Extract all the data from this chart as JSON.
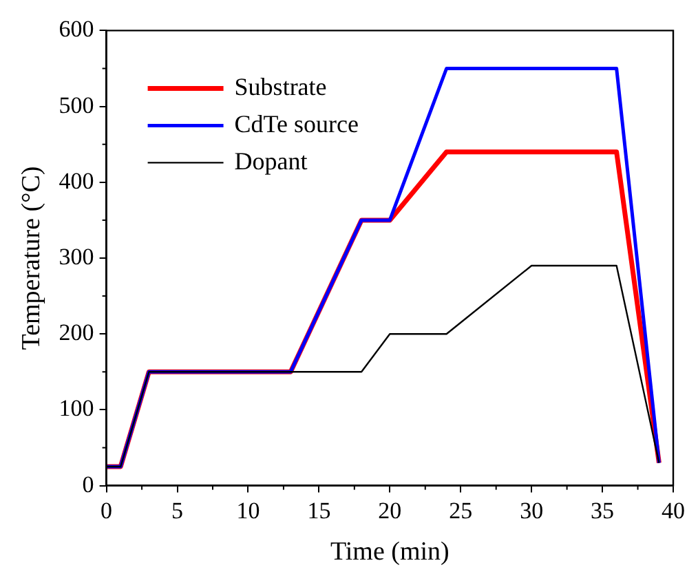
{
  "chart_data": {
    "type": "line",
    "xlabel": "Time (min)",
    "ylabel": "Temperature (°C)",
    "xlim": [
      0,
      40
    ],
    "xticks": [
      0,
      5,
      10,
      15,
      20,
      25,
      30,
      35,
      40
    ],
    "ylim": [
      0,
      600
    ],
    "yticks": [
      0,
      100,
      200,
      300,
      400,
      500,
      600
    ],
    "grid": false,
    "legend": "top left",
    "marker": "none",
    "line_style": "solid",
    "series": [
      {
        "name": "Substrate",
        "color": "#ff0000",
        "x": [
          0,
          1,
          3,
          13,
          18,
          20,
          24,
          36,
          39
        ],
        "values": [
          25,
          25,
          150,
          150,
          350,
          350,
          440,
          440,
          30
        ]
      },
      {
        "name": "CdTe source",
        "color": "#0000ff",
        "x": [
          0,
          1,
          3,
          13,
          18,
          20,
          24,
          36,
          39
        ],
        "values": [
          25,
          25,
          150,
          150,
          350,
          350,
          550,
          550,
          30
        ]
      },
      {
        "name": "Dopant",
        "color": "#000000",
        "x": [
          0,
          1,
          3,
          18,
          20,
          24,
          30,
          36,
          39
        ],
        "values": [
          25,
          25,
          150,
          150,
          200,
          200,
          290,
          290,
          30
        ]
      }
    ]
  }
}
